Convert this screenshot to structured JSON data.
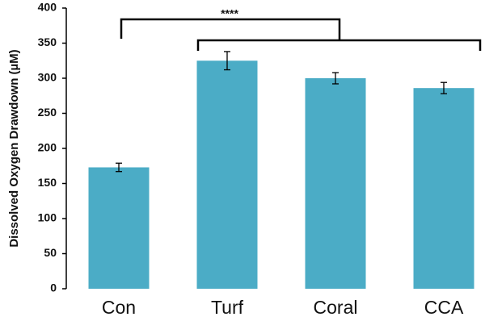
{
  "chart_data": {
    "type": "bar",
    "y_label": "Dissolved Oxygen Drawdown (µM)",
    "annotation": "****",
    "categories": [
      "Con",
      "Turf",
      "Coral",
      "CCA"
    ],
    "values": [
      173,
      325,
      300,
      286
    ],
    "errors": [
      6,
      13,
      8,
      8
    ],
    "color": "#4bacc6",
    "ylim": [
      0,
      400
    ],
    "yticks": [
      0,
      50,
      100,
      150,
      200,
      250,
      300,
      350,
      400
    ],
    "grid": false
  }
}
